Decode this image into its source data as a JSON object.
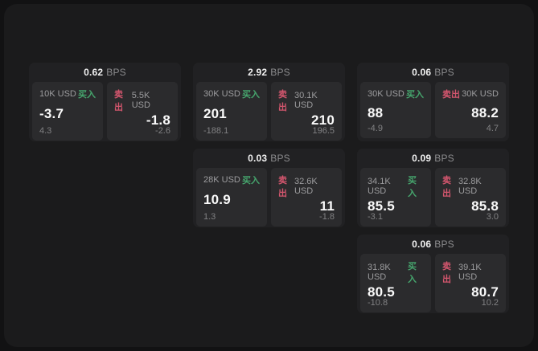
{
  "labels": {
    "bps_suffix": "BPS",
    "buy": "买入",
    "sell": "卖出"
  },
  "colors": {
    "page_background": "#121213",
    "panel_background": "#1b1b1c",
    "card_background": "#212123",
    "tile_background": "#2b2b2d",
    "buy_green": "#46a56d",
    "sell_red": "#d4566e",
    "value_white": "#fafafa",
    "muted_gray": "#8c8c8e"
  },
  "cards": [
    {
      "bps": "0.62",
      "buy": {
        "amount": "10K USD",
        "value": "-3.7",
        "sub": "4.3"
      },
      "sell": {
        "amount": "5.5K USD",
        "value": "-1.8",
        "sub": "-2.6"
      }
    },
    {
      "bps": "2.92",
      "buy": {
        "amount": "30K USD",
        "value": "201",
        "sub": "-188.1"
      },
      "sell": {
        "amount": "30.1K USD",
        "value": "210",
        "sub": "196.5"
      }
    },
    {
      "bps": "0.06",
      "buy": {
        "amount": "30K USD",
        "value": "88",
        "sub": "-4.9"
      },
      "sell": {
        "amount": "30K USD",
        "value": "88.2",
        "sub": "4.7"
      }
    },
    {
      "bps": "0.03",
      "buy": {
        "amount": "28K USD",
        "value": "10.9",
        "sub": "1.3"
      },
      "sell": {
        "amount": "32.6K USD",
        "value": "11",
        "sub": "-1.8"
      }
    },
    {
      "bps": "0.09",
      "buy": {
        "amount": "34.1K USD",
        "value": "85.5",
        "sub": "-3.1"
      },
      "sell": {
        "amount": "32.8K USD",
        "value": "85.8",
        "sub": "3.0"
      }
    },
    {
      "bps": "0.06",
      "buy": {
        "amount": "31.8K USD",
        "value": "80.5",
        "sub": "-10.8"
      },
      "sell": {
        "amount": "39.1K USD",
        "value": "80.7",
        "sub": "10.2"
      }
    }
  ]
}
